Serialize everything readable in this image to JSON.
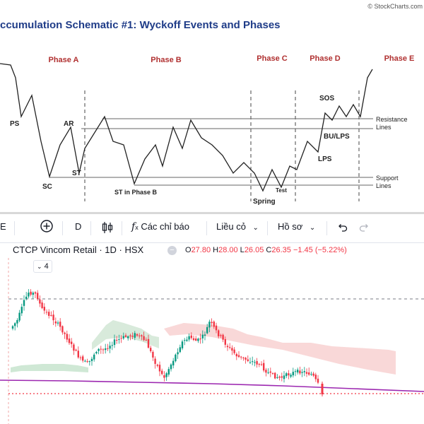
{
  "schematic": {
    "title": "ccumulation Schematic #1: Wyckoff Events and Phases",
    "watermark": "© StockCharts.com",
    "phases": [
      "Phase A",
      "Phase B",
      "Phase C",
      "Phase D",
      "Phase E"
    ],
    "events": {
      "ps": "PS",
      "sc": "SC",
      "ar": "AR",
      "st": "ST",
      "st_b": "ST in Phase B",
      "spring": "Spring",
      "test": "Test",
      "lps": "LPS",
      "sos": "SOS",
      "bu_lps": "BU/LPS"
    },
    "levels": {
      "resistance": [
        "Resistance",
        "Lines"
      ],
      "support": [
        "Support",
        "Lines"
      ]
    },
    "colors": {
      "title": "#1f3c88",
      "phase": "#b03030",
      "line": "#222222"
    }
  },
  "toolbar": {
    "items": [
      {
        "icon": "menu-edge-icon",
        "label": "E"
      },
      {
        "icon": "plus-circle-icon",
        "label": ""
      },
      {
        "icon": "",
        "label": "D"
      },
      {
        "icon": "candles-icon",
        "label": ""
      },
      {
        "icon": "fx-icon",
        "label": "Các chỉ báo"
      },
      {
        "icon": "",
        "label": "Liều cỏ"
      },
      {
        "icon": "",
        "label": "Hồ sơ"
      },
      {
        "icon": "undo-icon",
        "label": ""
      },
      {
        "icon": "redo-icon",
        "label": ""
      }
    ]
  },
  "symbol_legend": {
    "name": "CTCP Vincom Retail · 1D · HSX",
    "open": "27.80",
    "high": "28.00",
    "low": "26.05",
    "close": "26.35",
    "change": "−1.45 (−5.22%)",
    "collapse": "4",
    "colors": {
      "down": "#f23645",
      "up": "#089981"
    }
  },
  "chart_data": [
    {
      "type": "line",
      "title": "ccumulation Schematic #1: Wyckoff Events and Phases",
      "series": [
        {
          "values": [
            [
              0,
              90
            ],
            [
              15,
              92
            ],
            [
              22,
              110
            ],
            [
              30,
              165
            ],
            [
              45,
              135
            ],
            [
              58,
              200
            ],
            [
              70,
              250
            ],
            [
              85,
              205
            ],
            [
              100,
              180
            ],
            [
              112,
              245
            ],
            [
              120,
              210
            ],
            [
              148,
              165
            ],
            [
              160,
              200
            ],
            [
              175,
              205
            ],
            [
              190,
              260
            ],
            [
              205,
              225
            ],
            [
              220,
              205
            ],
            [
              230,
              235
            ],
            [
              245,
              180
            ],
            [
              258,
              210
            ],
            [
              270,
              170
            ],
            [
              285,
              195
            ],
            [
              300,
              205
            ],
            [
              315,
              220
            ],
            [
              330,
              245
            ],
            [
              345,
              230
            ],
            [
              360,
              245
            ],
            [
              372,
              270
            ],
            [
              385,
              240
            ],
            [
              398,
              265
            ],
            [
              410,
              235
            ],
            [
              420,
              240
            ],
            [
              435,
              200
            ],
            [
              450,
              215
            ],
            [
              460,
              160
            ],
            [
              470,
              170
            ],
            [
              480,
              150
            ],
            [
              490,
              165
            ],
            [
              500,
              148
            ],
            [
              510,
              165
            ],
            [
              520,
              110
            ],
            [
              527,
              98
            ]
          ]
        }
      ],
      "reference_lines": {
        "resistance": [
          168,
          182
        ],
        "support": [
          251,
          262
        ]
      },
      "y_axis": "inverted"
    },
    {
      "type": "candlestick",
      "title": "CTCP Vincom Retail · 1D · HSX",
      "last": {
        "open": 27.8,
        "high": 28.0,
        "low": 26.05,
        "close": 26.35
      },
      "change": -1.45,
      "change_pct": -5.22
    }
  ]
}
